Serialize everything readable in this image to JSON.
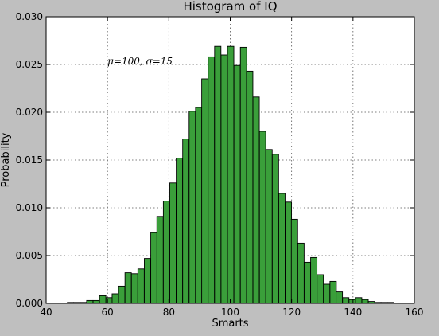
{
  "chart_data": {
    "type": "bar",
    "title": "Histogram of IQ",
    "xlabel": "Smarts",
    "ylabel": "Probability",
    "annotation": "μ=100, σ=15",
    "annotation_at": [
      60,
      0.025
    ],
    "xlim": [
      40,
      160
    ],
    "ylim": [
      0,
      0.03
    ],
    "x_ticks": [
      40,
      60,
      80,
      100,
      120,
      140,
      160
    ],
    "y_ticks": [
      "0.000",
      "0.005",
      "0.010",
      "0.015",
      "0.020",
      "0.025",
      "0.030"
    ],
    "grid": true,
    "bar_color": "#3a9f3a",
    "bin_width": 2.07,
    "bins_start": [
      46.9,
      49.0,
      51.1,
      53.2,
      55.3,
      57.4,
      59.5,
      61.5,
      63.6,
      65.7,
      67.8,
      69.9,
      72.0,
      74.1,
      76.1,
      78.2,
      80.3,
      82.4,
      84.5,
      86.6,
      88.7,
      90.7,
      92.8,
      94.9,
      97.0,
      99.1,
      101.2,
      103.3,
      105.3,
      107.4,
      109.5,
      111.6,
      113.7,
      115.8,
      117.9,
      119.9,
      122.0,
      124.1,
      126.2,
      128.3,
      130.4,
      132.5,
      134.5,
      136.6,
      138.7,
      140.8,
      142.9,
      145.0,
      147.1,
      149.1,
      151.2
    ],
    "values": [
      0.0001,
      0.0001,
      0.0001,
      0.0003,
      0.0003,
      0.0008,
      0.0006,
      0.001,
      0.0018,
      0.0032,
      0.0031,
      0.0036,
      0.0047,
      0.0074,
      0.0091,
      0.0107,
      0.0126,
      0.0152,
      0.0172,
      0.0201,
      0.0205,
      0.0235,
      0.0258,
      0.0269,
      0.026,
      0.0269,
      0.0249,
      0.0268,
      0.0243,
      0.0216,
      0.018,
      0.0161,
      0.0156,
      0.0115,
      0.0106,
      0.0088,
      0.0063,
      0.0043,
      0.0048,
      0.003,
      0.002,
      0.0023,
      0.0012,
      0.0006,
      0.0004,
      0.0006,
      0.0004,
      0.0002,
      0.0001,
      0.0001,
      0.0001
    ]
  }
}
